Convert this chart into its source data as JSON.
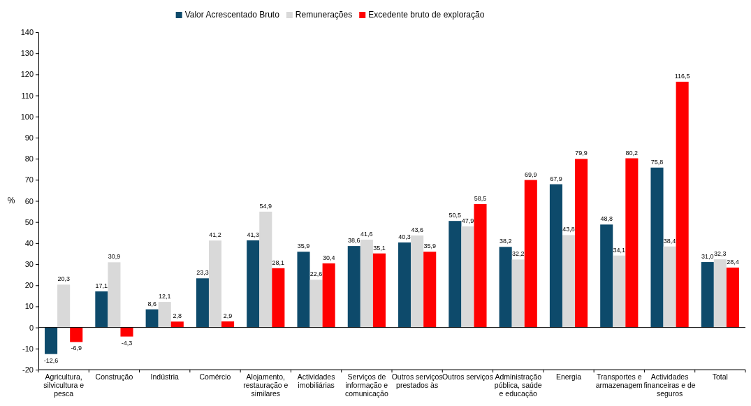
{
  "chart_data": {
    "type": "bar",
    "ylabel": "%",
    "legend": "top",
    "categories": [
      "Agricultura, silvicultura e pesca",
      "Construção",
      "Indústria",
      "Comércio",
      "Alojamento, restauração e similares",
      "Actividades imobiliárias",
      "Serviços de informação e comunicação",
      "Outros serviços prestados às",
      "Outros serviços",
      "Administração pública, saúde e educação",
      "Energia",
      "Transportes e armazenagem",
      "Actividades financeiras e de seguros",
      "Total"
    ],
    "ylim": [
      -20,
      140
    ],
    "yticks": [
      -20,
      -10,
      0,
      10,
      20,
      30,
      40,
      50,
      60,
      70,
      80,
      90,
      100,
      110,
      120,
      130,
      140
    ],
    "series": [
      {
        "name": "Valor Acrescentado Bruto",
        "color": "#0d4a6b",
        "values": [
          -12.6,
          17.1,
          8.6,
          23.3,
          41.3,
          35.9,
          38.6,
          40.3,
          50.5,
          38.2,
          67.9,
          48.8,
          75.8,
          31.0
        ],
        "value_labels": [
          "-12,6",
          "17,1",
          "8,6",
          "23,3",
          "41,3",
          "35,9",
          "38,6",
          "40,3",
          "50,5",
          "38,2",
          "67,9",
          "48,8",
          "75,8",
          "31,0"
        ]
      },
      {
        "name": "Remunerações",
        "color": "#d9d9d9",
        "values": [
          20.3,
          30.9,
          12.1,
          41.2,
          54.9,
          22.6,
          41.6,
          43.6,
          47.9,
          32.2,
          43.8,
          34.1,
          38.4,
          32.3
        ],
        "value_labels": [
          "20,3",
          "30,9",
          "12,1",
          "41,2",
          "54,9",
          "22,6",
          "41,6",
          "43,6",
          "47,9",
          "32,2",
          "43,8",
          "34,1",
          "38,4",
          "32,3"
        ]
      },
      {
        "name": "Excedente bruto de exploração",
        "color": "#ff0000",
        "values": [
          -6.9,
          -4.3,
          2.8,
          2.9,
          28.1,
          30.4,
          35.1,
          35.9,
          58.5,
          69.9,
          79.9,
          80.2,
          116.5,
          28.4
        ],
        "value_labels": [
          "-6,9",
          "-4,3",
          "2,8",
          "2,9",
          "28,1",
          "30,4",
          "35,1",
          "35,9",
          "58,5",
          "69,9",
          "79,9",
          "80,2",
          "116,5",
          "28,4"
        ]
      }
    ]
  }
}
